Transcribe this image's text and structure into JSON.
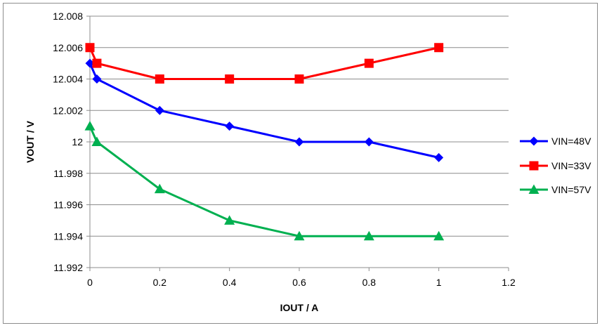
{
  "chart_data": {
    "type": "scatter",
    "xlabel": "IOUT / A",
    "ylabel": "VOUT / V",
    "xlim": [
      0,
      1.2
    ],
    "ylim": [
      11.992,
      12.008
    ],
    "x_ticks": [
      "0",
      "0.2",
      "0.4",
      "0.6",
      "0.8",
      "1",
      "1.2"
    ],
    "y_ticks": [
      "11.992",
      "11.994",
      "11.996",
      "11.998",
      "12",
      "12.002",
      "12.004",
      "12.006",
      "12.008"
    ],
    "grid": "horizontal",
    "legend_position": "right",
    "series": [
      {
        "name": "VIN=48V",
        "color": "#0000ff",
        "marker": "diamond",
        "x": [
          0,
          0.02,
          0.2,
          0.4,
          0.6,
          0.8,
          1
        ],
        "y": [
          12.005,
          12.004,
          12.002,
          12.001,
          12.0,
          12.0,
          11.999
        ]
      },
      {
        "name": "VIN=33V",
        "color": "#ff0000",
        "marker": "square",
        "x": [
          0,
          0.02,
          0.2,
          0.4,
          0.6,
          0.8,
          1
        ],
        "y": [
          12.006,
          12.005,
          12.004,
          12.004,
          12.004,
          12.005,
          12.006
        ]
      },
      {
        "name": "VIN=57V",
        "color": "#00b050",
        "marker": "triangle",
        "x": [
          0,
          0.02,
          0.2,
          0.4,
          0.6,
          0.8,
          1
        ],
        "y": [
          12.001,
          12.0,
          11.997,
          11.995,
          11.994,
          11.994,
          11.994
        ]
      }
    ]
  }
}
